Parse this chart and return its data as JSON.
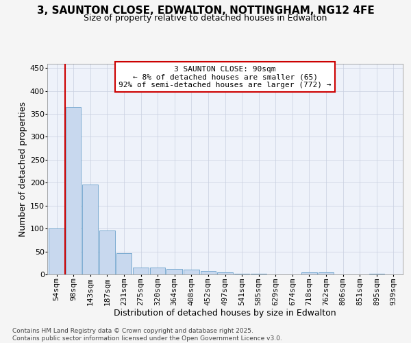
{
  "title_line1": "3, SAUNTON CLOSE, EDWALTON, NOTTINGHAM, NG12 4FE",
  "title_line2": "Size of property relative to detached houses in Edwalton",
  "xlabel": "Distribution of detached houses by size in Edwalton",
  "ylabel": "Number of detached properties",
  "categories": [
    "54sqm",
    "98sqm",
    "143sqm",
    "187sqm",
    "231sqm",
    "275sqm",
    "320sqm",
    "364sqm",
    "408sqm",
    "452sqm",
    "497sqm",
    "541sqm",
    "585sqm",
    "629sqm",
    "674sqm",
    "718sqm",
    "762sqm",
    "806sqm",
    "851sqm",
    "895sqm",
    "939sqm"
  ],
  "values": [
    100,
    365,
    196,
    95,
    47,
    15,
    15,
    12,
    10,
    7,
    5,
    1,
    1,
    0,
    0,
    4,
    4,
    0,
    0,
    1,
    0
  ],
  "bar_color": "#c8d8ee",
  "bar_edge_color": "#7aaad0",
  "vline_color": "#cc0000",
  "vline_x": 0.5,
  "annotation_box_edgecolor": "#cc0000",
  "annotation_text_line1": "3 SAUNTON CLOSE: 90sqm",
  "annotation_text_line2": "← 8% of detached houses are smaller (65)",
  "annotation_text_line3": "92% of semi-detached houses are larger (772) →",
  "ylim_max": 460,
  "yticks": [
    0,
    50,
    100,
    150,
    200,
    250,
    300,
    350,
    400,
    450
  ],
  "footer_line1": "Contains HM Land Registry data © Crown copyright and database right 2025.",
  "footer_line2": "Contains public sector information licensed under the Open Government Licence v3.0.",
  "bg_color": "#f5f5f5",
  "plot_bg_color": "#eef2fa",
  "grid_color": "#c8cfe0",
  "title_fontsize": 11,
  "subtitle_fontsize": 9,
  "ylabel_fontsize": 9,
  "xlabel_fontsize": 9,
  "tick_fontsize": 8,
  "annot_fontsize": 8,
  "footer_fontsize": 6.5
}
